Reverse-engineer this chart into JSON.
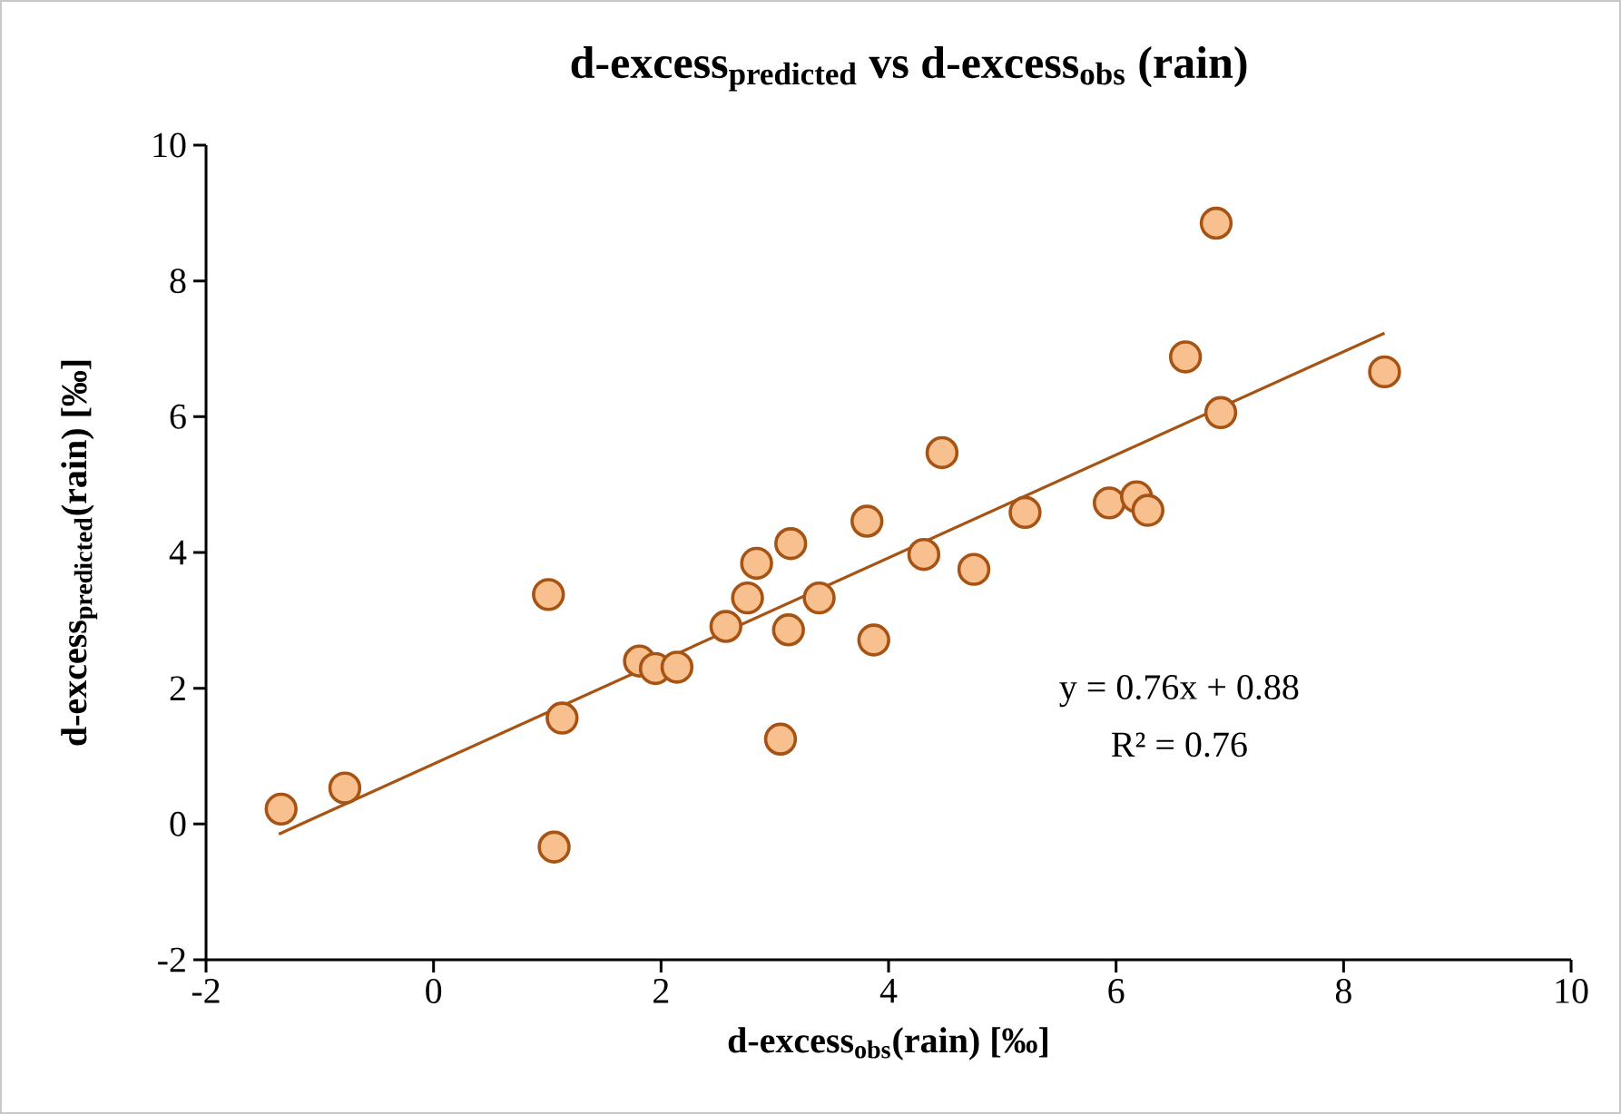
{
  "chart_data": {
    "type": "scatter",
    "title": "\\text{d-excess}_{\\text{predicted}}\\text{ vs d-excess}_{\\text{obs}}\\text{ (rain)}",
    "xlabel": "\\text{d-excess}_{\\text{obs}}\\text{(rain) [‰]}",
    "ylabel": "\\text{d-excess}_{\\text{predicted}}\\text{(rain) [‰]}",
    "xlim": [
      -2,
      10
    ],
    "ylim": [
      -2,
      10
    ],
    "xticks": [
      -2,
      0,
      2,
      4,
      6,
      8,
      10
    ],
    "yticks": [
      -2,
      0,
      2,
      4,
      6,
      8,
      10
    ],
    "grid": false,
    "series": [
      {
        "color": "#f8bf8f",
        "marker": "circle",
        "x": [
          -1.34,
          -0.78,
          1.01,
          1.13,
          1.06,
          1.81,
          1.95,
          2.14,
          2.57,
          2.76,
          2.84,
          3.14,
          3.12,
          3.05,
          3.39,
          3.81,
          3.87,
          4.47,
          5.2,
          4.75,
          4.31,
          5.94,
          6.18,
          6.28,
          6.61,
          6.88,
          6.92,
          8.36
        ],
        "values": [
          0.22,
          0.53,
          3.38,
          1.56,
          -0.34,
          2.4,
          2.29,
          2.31,
          2.91,
          3.33,
          3.84,
          4.13,
          2.86,
          1.25,
          3.33,
          4.46,
          2.71,
          5.47,
          4.59,
          3.75,
          3.97,
          4.73,
          4.82,
          4.62,
          6.88,
          8.85,
          6.06,
          6.66
        ]
      },
      {
        "type": "line",
        "color": "#a65313",
        "line_style": "solid",
        "marker": "none",
        "x": [
          -1.36,
          8.36
        ],
        "values": [
          -0.15,
          7.23
        ]
      }
    ],
    "annotations": [
      "y = 0.76x + 0.88",
      "R² = 0.76"
    ]
  }
}
